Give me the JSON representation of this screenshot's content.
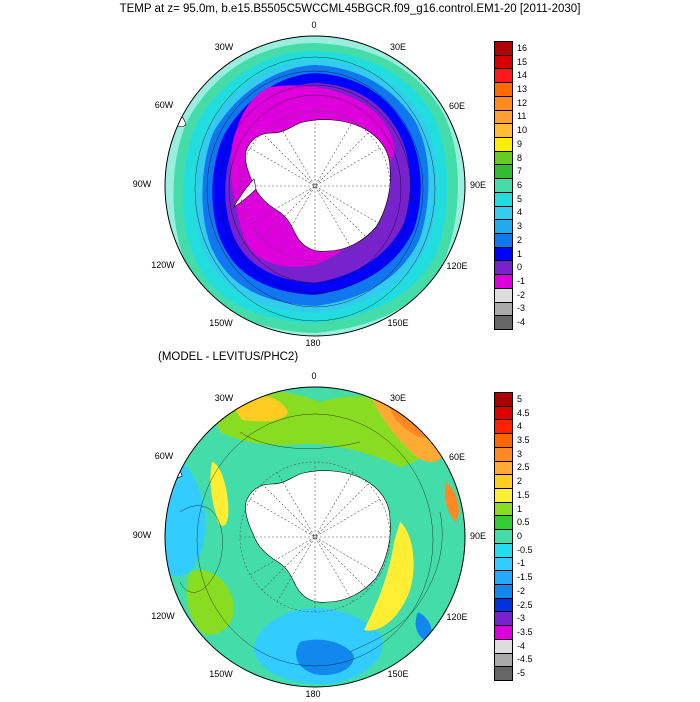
{
  "figure": {
    "title": "TEMP at z=  95.0m, b.e15.B5505C5WCCML45BGCR.f09_g16.control.EM1-20 [2011-2030]",
    "subtitle": "(MODEL - LEVITUS/PHC2)"
  },
  "longitude_labels": [
    "0",
    "30E",
    "60E",
    "90E",
    "120E",
    "150E",
    "180",
    "150W",
    "120W",
    "90W",
    "60W",
    "30W"
  ],
  "chart_data": [
    {
      "type": "heatmap",
      "projection": "south polar stereographic",
      "title": "TEMP at z=  95.0m, b.e15.B5505C5WCCML45BGCR.f09_g16.control.EM1-20 [2011-2030]",
      "colorbar": {
        "labels": [
          "16",
          "15",
          "14",
          "13",
          "12",
          "11",
          "10",
          "9",
          "8",
          "7",
          "6",
          "5",
          "4",
          "3",
          "2",
          "1",
          "0",
          "-1",
          "-2",
          "-3",
          "-4"
        ],
        "colors": [
          "#b00000",
          "#d80000",
          "#ff1a1a",
          "#ff6a00",
          "#ff8c1a",
          "#ffa030",
          "#ffbb33",
          "#ffee00",
          "#66cc22",
          "#33bb33",
          "#44ddaa",
          "#22dddd",
          "#33ccee",
          "#22aaee",
          "#1177ee",
          "#0000ff",
          "#7722cc",
          "#dd00dd",
          "#dddddd",
          "#aaaaaa",
          "#666666"
        ]
      },
      "colors": {
        "land": "#ffffff",
        "ocean_high": "#99eedd",
        "ocean_mid": "#33ccee",
        "ocean_low": "#1177ee",
        "cold": "#0000ff",
        "very_cold": "#7722cc",
        "freezing": "#dd00dd"
      }
    },
    {
      "type": "heatmap",
      "projection": "south polar stereographic",
      "title": "(MODEL - LEVITUS/PHC2)",
      "colorbar": {
        "labels": [
          "5",
          "4.5",
          "4",
          "3.5",
          "3",
          "2.5",
          "2",
          "1.5",
          "1",
          "0.5",
          "0",
          "-0.5",
          "-1",
          "-1.5",
          "-2",
          "-2.5",
          "-3",
          "-3.5",
          "-4",
          "-4.5",
          "-5"
        ],
        "colors": [
          "#aa0000",
          "#dd0000",
          "#ff2200",
          "#ff6600",
          "#ff8822",
          "#ffaa33",
          "#ffcc22",
          "#ffee33",
          "#88dd22",
          "#33cc33",
          "#44ddaa",
          "#22ddee",
          "#33ccff",
          "#22aaff",
          "#1188ee",
          "#0033dd",
          "#7722cc",
          "#dd00dd",
          "#dddddd",
          "#aaaaaa",
          "#666666"
        ]
      },
      "colors": {
        "land": "#ffffff",
        "background": "#44ddaa",
        "warm": "#ffcc22",
        "hot": "#ff8822",
        "cool": "#33ccff",
        "cold": "#1188ee"
      }
    }
  ]
}
